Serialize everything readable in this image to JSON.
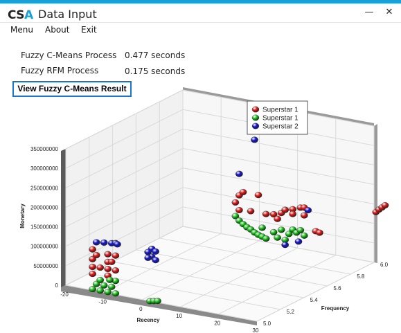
{
  "window": {
    "logo_text_1": "CS",
    "logo_text_2": "A",
    "title": "Data Input",
    "minimize_glyph": "—",
    "close_glyph": "✕",
    "accent_color": "#1aa0d6"
  },
  "menu": {
    "items": [
      "Menu",
      "About",
      "Exit"
    ]
  },
  "process": {
    "fcm_label": "Fuzzy C-Means Process",
    "fcm_value": "0.477 seconds",
    "rfm_label": "Fuzzy RFM Process",
    "rfm_value": "0.175 seconds"
  },
  "result_button": "View Fuzzy C-Means Result",
  "chart_data": {
    "type": "scatter3d",
    "xlabel": "Recency",
    "ylabel": "Frequency",
    "zlabel": "Monetary",
    "x_ticks": [
      "-20",
      "-10",
      "0",
      "10",
      "20",
      "30"
    ],
    "y_ticks": [
      "5.0",
      "5.2",
      "5.4",
      "5.6",
      "5.8",
      "6.0"
    ],
    "z_ticks": [
      "0",
      "50000000",
      "100000000",
      "150000000",
      "200000000",
      "250000000",
      "300000000",
      "350000000"
    ],
    "xlim": [
      -20,
      30
    ],
    "ylim": [
      5.0,
      6.0
    ],
    "zlim": [
      0,
      350000000
    ],
    "grid": true,
    "legend_position": "top-right",
    "series": [
      {
        "name": "Superstar 1",
        "color": "#e81c1c",
        "points": [
          [
            -13,
            5.0,
            105000000
          ],
          [
            -13,
            5.0,
            80000000
          ],
          [
            -13,
            5.0,
            60000000
          ],
          [
            -13,
            5.0,
            42000000
          ],
          [
            -9,
            5.0,
            100000000
          ],
          [
            -9,
            5.0,
            80000000
          ],
          [
            -9,
            5.0,
            62000000
          ],
          [
            -9,
            5.0,
            45000000
          ],
          [
            -7,
            5.0,
            100000000
          ],
          [
            -7,
            5.0,
            62000000
          ],
          [
            -11,
            5.0,
            62000000
          ],
          [
            -12,
            5.0,
            92000000
          ],
          [
            -8,
            5.0,
            82000000
          ],
          [
            7,
            5.6,
            190000000
          ],
          [
            8,
            5.6,
            200000000
          ],
          [
            6,
            5.6,
            170000000
          ],
          [
            7,
            5.6,
            152000000
          ],
          [
            10,
            5.6,
            155000000
          ],
          [
            12,
            5.6,
            200000000
          ],
          [
            14,
            5.6,
            155000000
          ],
          [
            16,
            5.6,
            158000000
          ],
          [
            18,
            5.6,
            165000000
          ],
          [
            19,
            5.6,
            175000000
          ],
          [
            21,
            5.6,
            180000000
          ],
          [
            23,
            5.6,
            188000000
          ],
          [
            24,
            5.6,
            190000000
          ],
          [
            21,
            5.6,
            168000000
          ],
          [
            24,
            5.6,
            170000000
          ],
          [
            27,
            5.6,
            135000000
          ],
          [
            28,
            5.6,
            133000000
          ],
          [
            17,
            5.6,
            148000000
          ],
          [
            30.5,
            6.0,
            130000000
          ],
          [
            31.3,
            6.0,
            138000000
          ],
          [
            32.1,
            6.0,
            145000000
          ],
          [
            32.9,
            6.0,
            152000000
          ]
        ]
      },
      {
        "name": "Superstar 1",
        "color": "#1ec81e",
        "points": [
          [
            -13,
            5.0,
            3000000
          ],
          [
            -11,
            5.0,
            3000000
          ],
          [
            -9,
            5.0,
            3000000
          ],
          [
            -7,
            5.0,
            3000000
          ],
          [
            -12,
            5.0,
            18000000
          ],
          [
            -10,
            5.0,
            18000000
          ],
          [
            -8,
            5.0,
            18000000
          ],
          [
            -7,
            5.0,
            35000000
          ],
          [
            -11,
            5.0,
            30000000
          ],
          [
            -8.5,
            5.0,
            35000000
          ],
          [
            2,
            5.0,
            0
          ],
          [
            3,
            5.0,
            2000000
          ],
          [
            4,
            5.0,
            4000000
          ],
          [
            6,
            5.6,
            135000000
          ],
          [
            7,
            5.6,
            125000000
          ],
          [
            8,
            5.6,
            118000000
          ],
          [
            9,
            5.6,
            112000000
          ],
          [
            10,
            5.6,
            108000000
          ],
          [
            11,
            5.6,
            102000000
          ],
          [
            12,
            5.6,
            98000000
          ],
          [
            13,
            5.6,
            95000000
          ],
          [
            14,
            5.6,
            92000000
          ],
          [
            16,
            5.6,
            112000000
          ],
          [
            17,
            5.6,
            100000000
          ],
          [
            20,
            5.6,
            115000000
          ],
          [
            21,
            5.6,
            128000000
          ],
          [
            22,
            5.6,
            122000000
          ],
          [
            23,
            5.6,
            130000000
          ],
          [
            24,
            5.6,
            118000000
          ],
          [
            19,
            5.6,
            98000000
          ],
          [
            18,
            5.6,
            122000000
          ],
          [
            13,
            5.6,
            118000000
          ]
        ]
      },
      {
        "name": "Superstar 2",
        "color": "#1414d6",
        "points": [
          [
            -12,
            5.0,
            125000000
          ],
          [
            -10,
            5.0,
            128000000
          ],
          [
            -8,
            5.0,
            130000000
          ],
          [
            -7,
            5.0,
            132000000
          ],
          [
            -6.5,
            5.0,
            130000000
          ],
          [
            2.5,
            5.0,
            135000000
          ],
          [
            3.5,
            5.0,
            130000000
          ],
          [
            2.5,
            5.0,
            115000000
          ],
          [
            3.5,
            5.0,
            108000000
          ],
          [
            1.5,
            5.0,
            125000000
          ],
          [
            1.5,
            5.0,
            110000000
          ],
          [
            7,
            5.6,
            245000000
          ],
          [
            11,
            5.6,
            340000000
          ],
          [
            22.5,
            5.6,
            100000000
          ],
          [
            19,
            5.6,
            85000000
          ],
          [
            25,
            5.6,
            185000000
          ]
        ]
      }
    ]
  }
}
